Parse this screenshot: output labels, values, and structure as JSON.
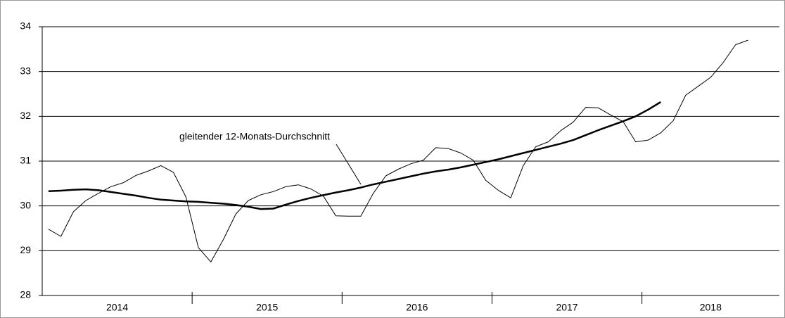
{
  "chart_data": {
    "type": "line",
    "categories": [
      null,
      null,
      null,
      null,
      null,
      null,
      null,
      null,
      null,
      null,
      null,
      null,
      null,
      null,
      null,
      null,
      null,
      null,
      null,
      null,
      null,
      null,
      null,
      null,
      null,
      null,
      null,
      null,
      null,
      null,
      null,
      null,
      null,
      null,
      null,
      null,
      null,
      null,
      null,
      null,
      null,
      null,
      null,
      null,
      null,
      null,
      null,
      null,
      null,
      null,
      null,
      null,
      null,
      null,
      null,
      null,
      null,
      null,
      null
    ],
    "groups": [
      "2014",
      "2015",
      "2016",
      "2017",
      "2018"
    ],
    "group_size": 12,
    "series": [
      {
        "name": null,
        "color": "#000000",
        "width": 1,
        "values": [
          29.48,
          29.32,
          29.87,
          30.12,
          30.28,
          30.43,
          30.52,
          30.68,
          30.78,
          30.9,
          30.75,
          30.2,
          29.07,
          28.75,
          29.25,
          29.82,
          30.12,
          30.25,
          30.32,
          30.43,
          30.47,
          30.38,
          30.22,
          29.78,
          29.77,
          29.77,
          30.28,
          30.67,
          30.82,
          30.94,
          31.02,
          31.3,
          31.28,
          31.18,
          31.02,
          30.57,
          30.35,
          30.18,
          30.9,
          31.32,
          31.43,
          31.68,
          31.87,
          32.2,
          32.19,
          32.03,
          31.88,
          31.43,
          31.47,
          31.63,
          31.9,
          32.47,
          32.67,
          32.87,
          33.2,
          33.6,
          33.7,
          null,
          null
        ]
      },
      {
        "name": null,
        "color": "#000000",
        "width": 2.5,
        "values": [
          30.33,
          30.34,
          30.36,
          30.37,
          30.35,
          30.31,
          30.27,
          30.23,
          30.18,
          30.14,
          30.12,
          30.1,
          30.09,
          30.07,
          30.05,
          30.02,
          29.98,
          29.93,
          29.94,
          30.03,
          30.11,
          30.18,
          30.24,
          30.3,
          30.35,
          30.41,
          30.48,
          30.54,
          30.6,
          30.66,
          30.72,
          30.77,
          30.81,
          30.86,
          30.92,
          30.98,
          31.04,
          31.11,
          31.18,
          31.25,
          31.32,
          31.39,
          31.47,
          31.58,
          31.69,
          31.79,
          31.89,
          32.0,
          32.15,
          32.32,
          null,
          null,
          null,
          null,
          null,
          null,
          null,
          null,
          null
        ]
      }
    ],
    "annotation": "gleitender 12-Monats-Durchschnitt",
    "ylim": [
      28,
      34
    ],
    "yticks": [
      28,
      29,
      30,
      31,
      32,
      33,
      34
    ],
    "grid": true
  }
}
